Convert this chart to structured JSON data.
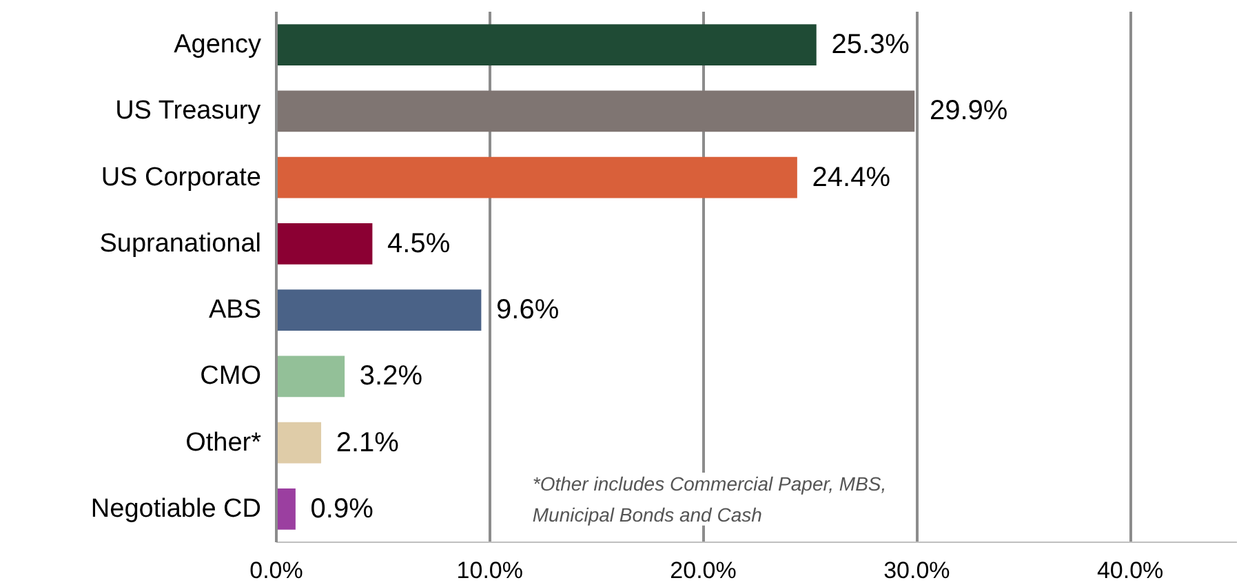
{
  "chart_data": {
    "type": "bar",
    "orientation": "horizontal",
    "categories": [
      "Agency",
      "US Treasury",
      "US Corporate",
      "Supranational",
      "ABS",
      "CMO",
      "Other*",
      "Negotiable CD"
    ],
    "values": [
      25.3,
      29.9,
      24.4,
      4.5,
      9.6,
      3.2,
      2.1,
      0.9
    ],
    "colors": [
      "#1f4b35",
      "#7f7572",
      "#d9603a",
      "#8b0033",
      "#4a6287",
      "#93c098",
      "#dfcca8",
      "#9b3fa0"
    ],
    "value_labels": [
      "25.3%",
      "29.9%",
      "24.4%",
      "4.5%",
      "9.6%",
      "3.2%",
      "2.1%",
      "0.9%"
    ],
    "xlim": [
      0,
      45
    ],
    "xticks": [
      {
        "value": 0,
        "label": "0.0%"
      },
      {
        "value": 10,
        "label": "10.0%"
      },
      {
        "value": 20,
        "label": "20.0%"
      },
      {
        "value": 30,
        "label": "30.0%"
      },
      {
        "value": 40,
        "label": "40.0%"
      }
    ],
    "grid": "x",
    "annotations": [
      "*Other includes Commercial Paper, MBS,\nMunicipal Bonds and Cash"
    ]
  }
}
